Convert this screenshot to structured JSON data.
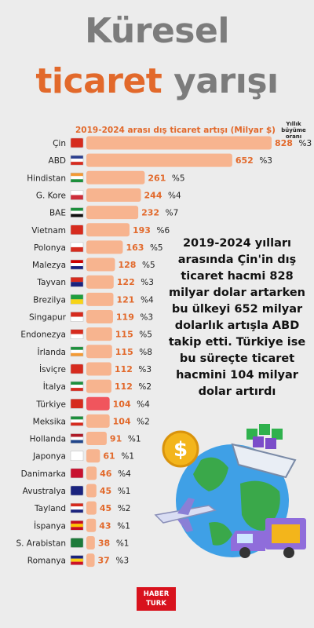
{
  "header": {
    "title_line1": "Küresel",
    "title_word_orange": "ticaret",
    "title_word_gray": "yarışı"
  },
  "chart_data": {
    "type": "bar",
    "orientation": "horizontal",
    "title": "2019-2024 arası dış ticaret artışı  (Milyar $)",
    "growth_label": "Yıllık büyüme oranı",
    "categories": [
      "Çin",
      "ABD",
      "Hindistan",
      "G. Kore",
      "BAE",
      "Vietnam",
      "Polonya",
      "Malezya",
      "Tayvan",
      "Brezilya",
      "Singapur",
      "Endonezya",
      "İrlanda",
      "İsviçre",
      "İtalya",
      "Türkiye",
      "Meksika",
      "Hollanda",
      "Japonya",
      "Danimarka",
      "Avustralya",
      "Tayland",
      "İspanya",
      "S. Arabistan",
      "Romanya"
    ],
    "values": [
      828,
      652,
      261,
      244,
      232,
      193,
      163,
      128,
      122,
      121,
      119,
      115,
      115,
      112,
      112,
      104,
      104,
      91,
      61,
      46,
      45,
      45,
      43,
      38,
      37
    ],
    "growth": [
      "%3",
      "%3",
      "%5",
      "%4",
      "%7",
      "%6",
      "%5",
      "%5",
      "%3",
      "%4",
      "%3",
      "%5",
      "%8",
      "%3",
      "%2",
      "%4",
      "%2",
      "%1",
      "%1",
      "%4",
      "%1",
      "%2",
      "%1",
      "%1",
      "%3"
    ],
    "highlight": "Türkiye",
    "bar_color": "#f7b48f",
    "highlight_color": "#f0555d",
    "value_color": "#e2692b",
    "xlim": [
      0,
      828
    ]
  },
  "description": "2019-2024 yılları arasında Çin'in dış ticaret hacmi 828 milyar dolar artarken bu ülkeyi 652 milyar dolarlık artışla ABD takip etti. Türkiye ise bu süreçte ticaret hacmini 104 milyar dolar artırdı",
  "logo": {
    "line1": "HABER",
    "line2": "TURK"
  },
  "colors": {
    "accent": "#e2692b",
    "title_gray": "#7c7c7c",
    "background": "#ececec"
  },
  "icons": [
    "flag-icon",
    "globe-icon",
    "dollar-coin-icon",
    "airplane-icon",
    "truck-icon",
    "cargo-ship-icon"
  ]
}
